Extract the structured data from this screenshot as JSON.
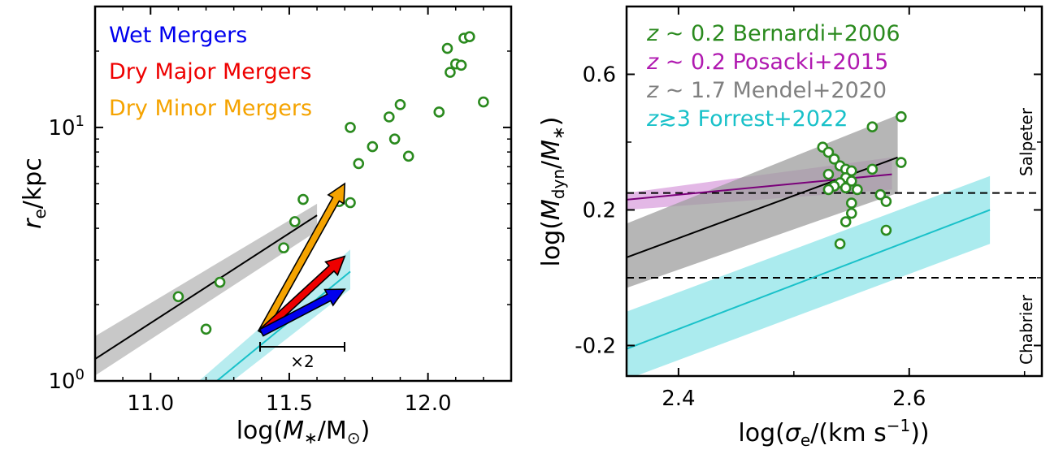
{
  "chart_data": [
    {
      "type": "scatter",
      "xlabel": "log(M∗/M⊙)",
      "ylabel": "r_e/kpc",
      "xlim": [
        10.8,
        12.3
      ],
      "ylim": [
        1,
        30
      ],
      "y_scale": "log",
      "x_ticks": [
        "11.0",
        "11.5",
        "12.0"
      ],
      "y_ticks": [
        {
          "value": 1,
          "label": "10⁰"
        },
        {
          "value": 10,
          "label": "10¹"
        }
      ],
      "legend": {
        "placement": "top-left",
        "entries": [
          {
            "label": "Wet Mergers",
            "color": "#0000ee"
          },
          {
            "label": "Dry Major Mergers",
            "color": "#ee0000"
          },
          {
            "label": "Dry Minor Mergers",
            "color": "#f5a300"
          }
        ]
      },
      "scale_bar_label": "×2",
      "arrows": [
        {
          "label": "Dry Minor Mergers",
          "color": "#f5a300",
          "from": [
            11.4,
            1.55
          ],
          "to": [
            11.7,
            6.0
          ]
        },
        {
          "label": "Dry Major Mergers",
          "color": "#ee0000",
          "from": [
            11.4,
            1.55
          ],
          "to": [
            11.7,
            3.1
          ]
        },
        {
          "label": "Wet Mergers",
          "color": "#0000ee",
          "from": [
            11.4,
            1.55
          ],
          "to": [
            11.7,
            2.3
          ]
        }
      ],
      "series": [
        {
          "color": "#2a8a1e",
          "points": [
            [
              11.1,
              2.15
            ],
            [
              11.2,
              1.6
            ],
            [
              11.25,
              2.45
            ],
            [
              11.48,
              3.35
            ],
            [
              11.52,
              4.25
            ],
            [
              11.55,
              5.2
            ],
            [
              11.68,
              5.1
            ],
            [
              11.72,
              5.05
            ],
            [
              11.72,
              10.0
            ],
            [
              11.75,
              7.2
            ],
            [
              11.8,
              8.4
            ],
            [
              11.86,
              11.0
            ],
            [
              11.88,
              9.0
            ],
            [
              11.9,
              12.3
            ],
            [
              11.93,
              7.7
            ],
            [
              12.04,
              11.5
            ],
            [
              12.07,
              20.5
            ],
            [
              12.08,
              16.5
            ],
            [
              12.1,
              17.8
            ],
            [
              12.12,
              17.6
            ],
            [
              12.13,
              22.5
            ],
            [
              12.15,
              22.8
            ],
            [
              12.2,
              12.6
            ]
          ]
        },
        {
          "color": "#000000",
          "line": [
            [
              10.8,
              1.22
            ],
            [
              11.6,
              4.5
            ]
          ],
          "band": {
            "color": "#b5b5b5",
            "upper": [
              [
                10.8,
                1.5
              ],
              [
                11.6,
                5.0
              ]
            ],
            "lower": [
              [
                10.8,
                1.05
              ],
              [
                11.6,
                3.9
              ]
            ]
          }
        },
        {
          "color": "#19c1c9",
          "line": [
            [
              11.1,
              0.75
            ],
            [
              11.72,
              2.7
            ]
          ],
          "band": {
            "color": "#9fe6ea",
            "upper": [
              [
                11.1,
                0.85
              ],
              [
                11.72,
                3.3
              ]
            ],
            "lower": [
              [
                11.1,
                0.68
              ],
              [
                11.72,
                2.3
              ]
            ]
          }
        }
      ]
    },
    {
      "type": "scatter",
      "xlabel": "log(σe/(km s⁻¹))",
      "ylabel": "log(M_dyn/M∗)",
      "xlim": [
        2.355,
        2.715
      ],
      "ylim": [
        -0.29,
        0.8
      ],
      "x_ticks": [
        "2.4",
        "2.6"
      ],
      "y_ticks": [
        "-0.2",
        "0.2",
        "0.6"
      ],
      "legend": {
        "placement": "top-left",
        "entries": [
          {
            "label": "z ∼ 0.2 Bernardi+2006",
            "color": "#2a8a1e"
          },
          {
            "label": "z ∼ 0.2 Posacki+2015",
            "color": "#b019b0"
          },
          {
            "label": "z ∼ 1.7 Mendel+2020",
            "color": "#808080"
          },
          {
            "label": "z≳3 Forrest+2022",
            "color": "#19c1c9"
          }
        ]
      },
      "reference_lines": [
        {
          "label": "Salpeter",
          "y": 0.25
        },
        {
          "label": "Chabrier",
          "y": 0.0
        }
      ],
      "series": [
        {
          "name": "z ∼ 0.2 Bernardi+2006",
          "color": "#2a8a1e",
          "points": [
            [
              2.525,
              0.385
            ],
            [
              2.53,
              0.37
            ],
            [
              2.535,
              0.35
            ],
            [
              2.54,
              0.33
            ],
            [
              2.53,
              0.305
            ],
            [
              2.545,
              0.32
            ],
            [
              2.55,
              0.315
            ],
            [
              2.545,
              0.295
            ],
            [
              2.55,
              0.285
            ],
            [
              2.54,
              0.28
            ],
            [
              2.535,
              0.27
            ],
            [
              2.53,
              0.26
            ],
            [
              2.545,
              0.265
            ],
            [
              2.555,
              0.26
            ],
            [
              2.55,
              0.22
            ],
            [
              2.55,
              0.19
            ],
            [
              2.545,
              0.165
            ],
            [
              2.54,
              0.1
            ],
            [
              2.568,
              0.32
            ],
            [
              2.568,
              0.445
            ],
            [
              2.575,
              0.245
            ],
            [
              2.58,
              0.225
            ],
            [
              2.58,
              0.14
            ],
            [
              2.593,
              0.34
            ],
            [
              2.593,
              0.475
            ]
          ]
        },
        {
          "name": "z ∼ 0.2 Posacki+2015",
          "color": "#7a007a",
          "line": [
            [
              2.355,
              0.23
            ],
            [
              2.585,
              0.305
            ]
          ],
          "band": {
            "color": "#d9a0dd",
            "upper": [
              [
                2.355,
                0.25
              ],
              [
                2.585,
                0.355
              ]
            ],
            "lower": [
              [
                2.355,
                0.2
              ],
              [
                2.585,
                0.26
              ]
            ]
          }
        },
        {
          "name": "z ∼ 1.7 Mendel+2020",
          "color": "#000000",
          "line": [
            [
              2.355,
              0.06
            ],
            [
              2.59,
              0.355
            ]
          ],
          "band": {
            "color": "#9e9e9e",
            "upper": [
              [
                2.355,
                0.16
              ],
              [
                2.59,
                0.48
              ]
            ],
            "lower": [
              [
                2.355,
                -0.03
              ],
              [
                2.59,
                0.25
              ]
            ]
          }
        },
        {
          "name": "z≳3 Forrest+2022",
          "color": "#19c1c9",
          "line": [
            [
              2.355,
              -0.21
            ],
            [
              2.67,
              0.2
            ]
          ],
          "band": {
            "color": "#8fe4e8",
            "upper": [
              [
                2.355,
                -0.1
              ],
              [
                2.67,
                0.3
              ]
            ],
            "lower": [
              [
                2.355,
                -0.3
              ],
              [
                2.67,
                0.1
              ]
            ]
          }
        }
      ]
    }
  ]
}
